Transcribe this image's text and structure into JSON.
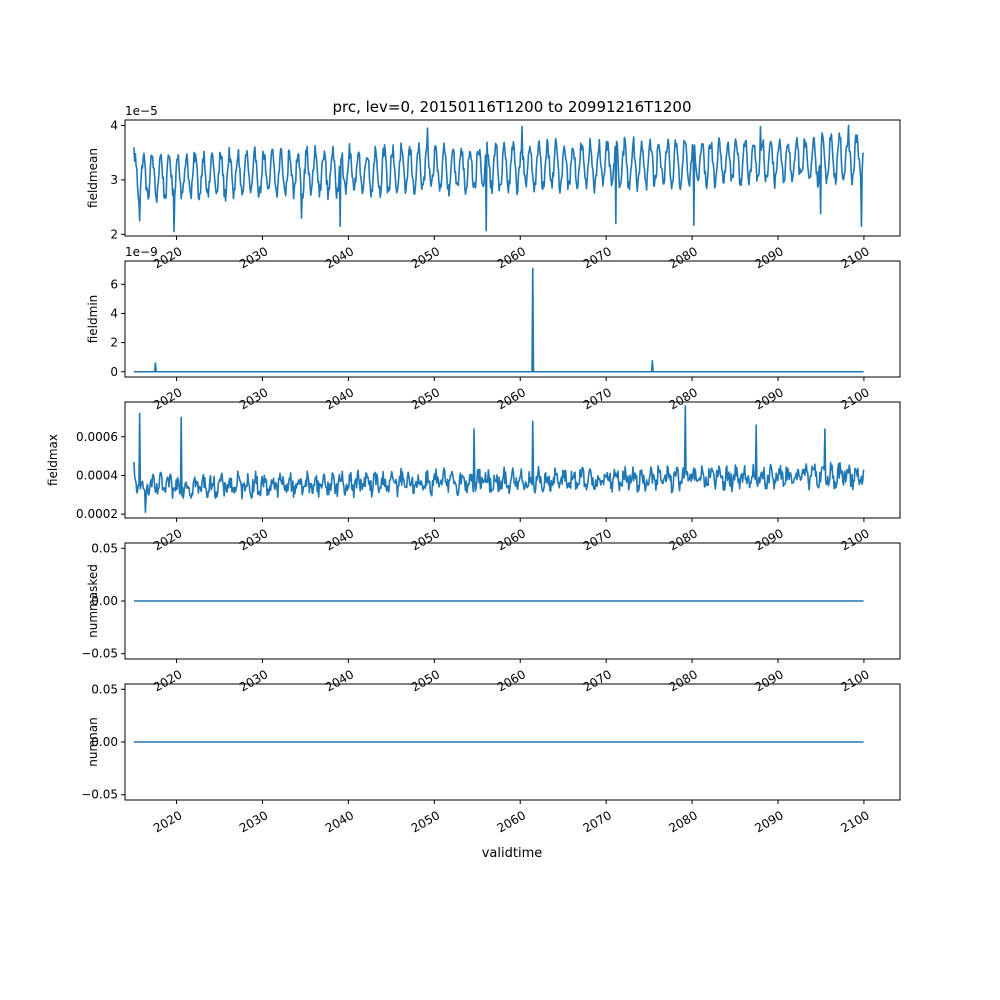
{
  "figure": {
    "title": "prc, lev=0, 20150116T1200 to 20991216T1200",
    "xlabel": "validtime"
  },
  "chart_data": [
    {
      "type": "line",
      "ylabel": "fieldmean",
      "offset_text": "1e−5",
      "yticks": [
        2,
        3,
        4
      ],
      "ytick_labels": [
        "2",
        "3",
        "4"
      ],
      "ylim": [
        1.97,
        4.1
      ],
      "xlim": [
        2014.0,
        2104.2
      ],
      "xticks": [
        2020,
        2030,
        2040,
        2050,
        2060,
        2070,
        2080,
        2090,
        2100
      ],
      "xtick_labels": [
        "2020",
        "2030",
        "2040",
        "2050",
        "2060",
        "2070",
        "2080",
        "2090",
        "2100"
      ],
      "x_start": 2015.04,
      "x_end": 2099.96,
      "series": [
        {
          "color": "#1f77b4",
          "base": 3.05,
          "amplitude": 0.38,
          "noise": 0.28,
          "trend": 0.35,
          "spikes": [
            [
              2015.04,
              3.6
            ],
            [
              2015.7,
              2.25
            ],
            [
              2019.7,
              2.05
            ],
            [
              2034.5,
              2.3
            ],
            [
              2039.0,
              2.15
            ],
            [
              2049.2,
              3.95
            ],
            [
              2056.0,
              2.07
            ],
            [
              2060.2,
              3.98
            ],
            [
              2071.1,
              2.2
            ],
            [
              2080.2,
              2.17
            ],
            [
              2088.0,
              3.98
            ],
            [
              2095.0,
              2.38
            ],
            [
              2098.2,
              4.0
            ],
            [
              2099.7,
              2.15
            ],
            [
              2099.96,
              3.5
            ]
          ]
        }
      ]
    },
    {
      "type": "line",
      "ylabel": "fieldmin",
      "offset_text": "1e−9",
      "yticks": [
        0,
        2,
        4,
        6
      ],
      "ytick_labels": [
        "0",
        "2",
        "4",
        "6"
      ],
      "ylim": [
        -0.36,
        7.6
      ],
      "xlim": [
        2014.0,
        2104.2
      ],
      "xticks": [
        2020,
        2030,
        2040,
        2050,
        2060,
        2070,
        2080,
        2090,
        2100
      ],
      "xtick_labels": [
        "2020",
        "2030",
        "2040",
        "2050",
        "2060",
        "2070",
        "2080",
        "2090",
        "2100"
      ],
      "x_start": 2015.04,
      "x_end": 2099.96,
      "series": [
        {
          "color": "#1f77b4",
          "base": 0.0,
          "amplitude": 0.0,
          "noise": 0.0,
          "trend": 0.0,
          "spikes": [
            [
              2017.5,
              0.6
            ],
            [
              2061.5,
              7.1
            ],
            [
              2075.4,
              0.75
            ]
          ]
        }
      ]
    },
    {
      "type": "line",
      "ylabel": "fieldmax",
      "offset_text": "",
      "yticks": [
        0.0002,
        0.0004,
        0.0006
      ],
      "ytick_labels": [
        "0.0002",
        "0.0004",
        "0.0006"
      ],
      "ylim": [
        0.00018,
        0.00078
      ],
      "xlim": [
        2014.0,
        2104.2
      ],
      "xticks": [
        2020,
        2030,
        2040,
        2050,
        2060,
        2070,
        2080,
        2090,
        2100
      ],
      "xtick_labels": [
        "2020",
        "2030",
        "2040",
        "2050",
        "2060",
        "2070",
        "2080",
        "2090",
        "2100"
      ],
      "x_start": 2015.04,
      "x_end": 2099.96,
      "series": [
        {
          "color": "#1f77b4",
          "base": 0.00034,
          "amplitude": 3e-05,
          "noise": 9e-05,
          "trend": 6e-05,
          "spikes": [
            [
              2015.04,
              0.00047
            ],
            [
              2015.7,
              0.00072
            ],
            [
              2016.4,
              0.00021
            ],
            [
              2020.5,
              0.0007
            ],
            [
              2054.6,
              0.00064
            ],
            [
              2061.5,
              0.00068
            ],
            [
              2079.2,
              0.00076
            ],
            [
              2087.5,
              0.00066
            ],
            [
              2095.5,
              0.00064
            ],
            [
              2099.96,
              0.00043
            ]
          ]
        }
      ]
    },
    {
      "type": "line",
      "ylabel": "nummasked",
      "offset_text": "",
      "yticks": [
        -0.05,
        0.0,
        0.05
      ],
      "ytick_labels": [
        "−0.05",
        "0.00",
        "0.05"
      ],
      "ylim": [
        -0.055,
        0.055
      ],
      "xlim": [
        2014.0,
        2104.2
      ],
      "xticks": [
        2020,
        2030,
        2040,
        2050,
        2060,
        2070,
        2080,
        2090,
        2100
      ],
      "xtick_labels": [
        "2020",
        "2030",
        "2040",
        "2050",
        "2060",
        "2070",
        "2080",
        "2090",
        "2100"
      ],
      "x_start": 2015.04,
      "x_end": 2099.96,
      "series": [
        {
          "color": "#1f77b4",
          "base": 0.0,
          "amplitude": 0.0,
          "noise": 0.0,
          "trend": 0.0,
          "spikes": []
        }
      ]
    },
    {
      "type": "line",
      "ylabel": "numnan",
      "offset_text": "",
      "yticks": [
        -0.05,
        0.0,
        0.05
      ],
      "ytick_labels": [
        "−0.05",
        "0.00",
        "0.05"
      ],
      "ylim": [
        -0.055,
        0.055
      ],
      "xlim": [
        2014.0,
        2104.2
      ],
      "xticks": [
        2020,
        2030,
        2040,
        2050,
        2060,
        2070,
        2080,
        2090,
        2100
      ],
      "xtick_labels": [
        "2020",
        "2030",
        "2040",
        "2050",
        "2060",
        "2070",
        "2080",
        "2090",
        "2100"
      ],
      "x_start": 2015.04,
      "x_end": 2099.96,
      "series": [
        {
          "color": "#1f77b4",
          "base": 0.0,
          "amplitude": 0.0,
          "noise": 0.0,
          "trend": 0.0,
          "spikes": []
        }
      ]
    }
  ]
}
